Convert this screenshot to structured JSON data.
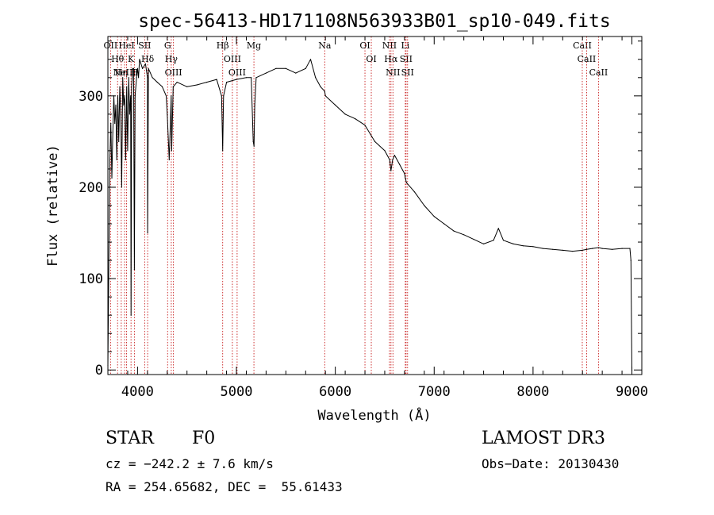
{
  "chart_data": {
    "type": "line",
    "title": "spec-56413-HD171108N563933B01_sp10-049.fits",
    "xlabel": "Wavelength (Å)",
    "ylabel": "Flux (relative)",
    "xlim": [
      3700,
      9100
    ],
    "ylim": [
      -5,
      365
    ],
    "xticks": [
      4000,
      5000,
      6000,
      7000,
      8000,
      9000
    ],
    "yticks": [
      0,
      100,
      200,
      300
    ],
    "grid": false,
    "series": [
      {
        "name": "flux",
        "x": [
          3700,
          3710,
          3720,
          3730,
          3740,
          3750,
          3760,
          3770,
          3780,
          3790,
          3800,
          3810,
          3820,
          3830,
          3840,
          3850,
          3860,
          3870,
          3880,
          3890,
          3900,
          3910,
          3920,
          3930,
          3934,
          3940,
          3950,
          3960,
          3968,
          3975,
          3990,
          4000,
          4010,
          4020,
          4050,
          4080,
          4100,
          4102,
          4110,
          4150,
          4200,
          4250,
          4290,
          4300,
          4320,
          4340,
          4345,
          4360,
          4400,
          4500,
          4600,
          4700,
          4800,
          4850,
          4861,
          4870,
          4900,
          5000,
          5100,
          5150,
          5170,
          5178,
          5185,
          5200,
          5300,
          5400,
          5500,
          5600,
          5700,
          5750,
          5800,
          5850,
          5893,
          5900,
          6000,
          6100,
          6200,
          6300,
          6400,
          6500,
          6550,
          6563,
          6580,
          6600,
          6650,
          6700,
          6708,
          6720,
          6800,
          6900,
          7000,
          7100,
          7200,
          7300,
          7400,
          7500,
          7600,
          7650,
          7700,
          7800,
          7900,
          8000,
          8100,
          8200,
          8300,
          8400,
          8498,
          8542,
          8600,
          8662,
          8700,
          8800,
          8900,
          8980,
          8990,
          9000
        ],
        "values": [
          5,
          120,
          230,
          270,
          210,
          260,
          300,
          270,
          290,
          230,
          300,
          250,
          310,
          280,
          200,
          320,
          290,
          300,
          230,
          310,
          240,
          320,
          280,
          300,
          60,
          310,
          330,
          330,
          110,
          300,
          320,
          330,
          320,
          340,
          330,
          335,
          320,
          150,
          330,
          320,
          315,
          310,
          300,
          280,
          230,
          300,
          240,
          310,
          315,
          310,
          312,
          315,
          318,
          300,
          240,
          300,
          315,
          318,
          320,
          320,
          250,
          245,
          290,
          320,
          325,
          330,
          330,
          325,
          330,
          340,
          320,
          310,
          305,
          300,
          290,
          280,
          275,
          268,
          250,
          240,
          230,
          218,
          230,
          235,
          225,
          215,
          210,
          205,
          195,
          180,
          168,
          160,
          152,
          148,
          143,
          138,
          142,
          155,
          142,
          138,
          136,
          135,
          133,
          132,
          131,
          130,
          131,
          132,
          133,
          134,
          133,
          132,
          133,
          133,
          120,
          0
        ]
      }
    ],
    "line_marks": [
      {
        "wl": 3727,
        "label": "OII"
      },
      {
        "wl": 3798,
        "label": "Hθ"
      },
      {
        "wl": 3835,
        "label": "Hη"
      },
      {
        "wl": 3869,
        "label": "NeIII"
      },
      {
        "wl": 3889,
        "label": "HeI"
      },
      {
        "wl": 3934,
        "label": "K"
      },
      {
        "wl": 3968,
        "label": "H"
      },
      {
        "wl": 4072,
        "label": "SII"
      },
      {
        "wl": 4102,
        "label": "Hδ"
      },
      {
        "wl": 4304,
        "label": "G"
      },
      {
        "wl": 4341,
        "label": "Hγ"
      },
      {
        "wl": 4363,
        "label": "OIII"
      },
      {
        "wl": 4861,
        "label": "Hβ"
      },
      {
        "wl": 4959,
        "label": "OIII"
      },
      {
        "wl": 5007,
        "label": "OIII"
      },
      {
        "wl": 5177,
        "label": "Mg"
      },
      {
        "wl": 5893,
        "label": "Na"
      },
      {
        "wl": 6300,
        "label": "OI"
      },
      {
        "wl": 6364,
        "label": "OI"
      },
      {
        "wl": 6548,
        "label": "NII"
      },
      {
        "wl": 6563,
        "label": "Hα"
      },
      {
        "wl": 6583,
        "label": "NII"
      },
      {
        "wl": 6708,
        "label": "Li"
      },
      {
        "wl": 6716,
        "label": "SII"
      },
      {
        "wl": 6731,
        "label": "SII"
      },
      {
        "wl": 8498,
        "label": "CaII"
      },
      {
        "wl": 8542,
        "label": "CaII"
      },
      {
        "wl": 8662,
        "label": "CaII"
      }
    ]
  },
  "info": {
    "class_label": "STAR",
    "subclass": "F0",
    "survey": "LAMOST DR3",
    "cz": "cz = −242.2 ± 7.6 km/s",
    "obs_date": "Obs−Date: 20130430",
    "radec": "RA = 254.65682, DEC =  55.61433"
  },
  "colors": {
    "spectrum": "#000000",
    "line_marker": "#c81e1e",
    "background": "#ffffff"
  }
}
